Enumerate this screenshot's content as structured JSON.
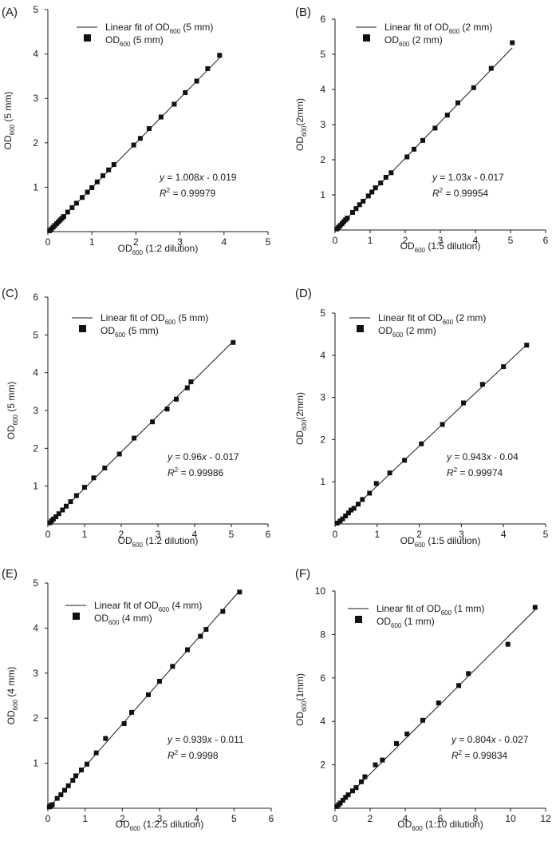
{
  "chart_data": [
    {
      "type": "scatter",
      "panel_label": "(A)",
      "xlabel": {
        "main": "OD",
        "sub": "600",
        "rest": " (1:2 dilution)"
      },
      "ylabel": {
        "main": "OD",
        "sub": "600",
        "rest": " (5 mm)"
      },
      "xlim": [
        0,
        5
      ],
      "ylim": [
        0,
        5
      ],
      "xticks": [
        0,
        1,
        2,
        3,
        4,
        5
      ],
      "yticks": [
        1,
        2,
        3,
        4,
        5
      ],
      "legend": {
        "line": {
          "prefix": "Linear fit of OD",
          "sub": "600",
          "rest": " (5 mm)"
        },
        "marker": {
          "prefix": "OD",
          "sub": "600",
          "rest": " (5 mm)"
        }
      },
      "fit": {
        "slope": 1.008,
        "intercept": -0.019,
        "x_end": 3.95
      },
      "equation": {
        "y": "y",
        "eq": " = 1.008",
        "x": "x",
        "tail": " - 0.019"
      },
      "r2": {
        "r": "R",
        "sup": "2",
        "value": " = 0.99979"
      },
      "points": [
        [
          0.04,
          0.02
        ],
        [
          0.08,
          0.06
        ],
        [
          0.12,
          0.1
        ],
        [
          0.16,
          0.14
        ],
        [
          0.2,
          0.18
        ],
        [
          0.24,
          0.22
        ],
        [
          0.28,
          0.26
        ],
        [
          0.32,
          0.3
        ],
        [
          0.36,
          0.34
        ],
        [
          0.45,
          0.44
        ],
        [
          0.55,
          0.54
        ],
        [
          0.65,
          0.64
        ],
        [
          0.78,
          0.77
        ],
        [
          0.9,
          0.89
        ],
        [
          1.0,
          0.99
        ],
        [
          1.12,
          1.12
        ],
        [
          1.25,
          1.26
        ],
        [
          1.38,
          1.39
        ],
        [
          1.5,
          1.51
        ],
        [
          1.95,
          1.95
        ],
        [
          2.1,
          2.1
        ],
        [
          2.3,
          2.32
        ],
        [
          2.57,
          2.58
        ],
        [
          2.87,
          2.87
        ],
        [
          3.12,
          3.13
        ],
        [
          3.38,
          3.39
        ],
        [
          3.63,
          3.67
        ],
        [
          3.9,
          3.97
        ]
      ]
    },
    {
      "type": "scatter",
      "panel_label": "(B)",
      "xlabel": {
        "main": "OD",
        "sub": "600",
        "rest": " (1:5 dilution)"
      },
      "ylabel": {
        "main": "OD",
        "sub": "600",
        "rest": "(2mm)"
      },
      "xlim": [
        0,
        6
      ],
      "ylim": [
        0,
        6
      ],
      "xticks": [
        0,
        1,
        2,
        3,
        4,
        5,
        6
      ],
      "yticks": [
        1,
        2,
        3,
        4,
        5,
        6
      ],
      "legend": {
        "line": {
          "prefix": "Linear fit of OD",
          "sub": "600",
          "rest": " (2 mm)"
        },
        "marker": {
          "prefix": "OD",
          "sub": "600",
          "rest": " (2 mm)"
        }
      },
      "fit": {
        "slope": 1.03,
        "intercept": -0.017,
        "x_end": 5.05
      },
      "equation": {
        "y": "y",
        "eq": " = 1.03",
        "x": "x",
        "tail": " - 0.017"
      },
      "r2": {
        "r": "R",
        "sup": "2",
        "value": " = 0.99954"
      },
      "points": [
        [
          0.05,
          0.03
        ],
        [
          0.1,
          0.08
        ],
        [
          0.15,
          0.13
        ],
        [
          0.2,
          0.18
        ],
        [
          0.25,
          0.24
        ],
        [
          0.3,
          0.29
        ],
        [
          0.35,
          0.34
        ],
        [
          0.5,
          0.5
        ],
        [
          0.6,
          0.61
        ],
        [
          0.7,
          0.72
        ],
        [
          0.8,
          0.82
        ],
        [
          0.95,
          0.97
        ],
        [
          1.05,
          1.08
        ],
        [
          1.15,
          1.2
        ],
        [
          1.3,
          1.34
        ],
        [
          1.45,
          1.5
        ],
        [
          1.6,
          1.63
        ],
        [
          2.05,
          2.08
        ],
        [
          2.25,
          2.3
        ],
        [
          2.5,
          2.55
        ],
        [
          2.85,
          2.9
        ],
        [
          3.2,
          3.27
        ],
        [
          3.5,
          3.62
        ],
        [
          3.95,
          4.05
        ],
        [
          4.45,
          4.6
        ],
        [
          5.05,
          5.33
        ]
      ]
    },
    {
      "type": "scatter",
      "panel_label": "(C)",
      "xlabel": {
        "main": "OD",
        "sub": "600",
        "rest": " (1:2 dilution)"
      },
      "ylabel": {
        "main": "OD",
        "sub": "600",
        "rest": " (5 mm)"
      },
      "xlim": [
        0,
        6
      ],
      "ylim": [
        0,
        6
      ],
      "xticks": [
        0,
        1,
        2,
        3,
        4,
        5,
        6
      ],
      "yticks": [
        1,
        2,
        3,
        4,
        5,
        6
      ],
      "legend": {
        "line": {
          "prefix": "Linear fit of OD",
          "sub": "600",
          "rest": " (5 mm)"
        },
        "marker": {
          "prefix": "OD",
          "sub": "600",
          "rest": " (5 mm)"
        }
      },
      "fit": {
        "slope": 0.96,
        "intercept": -0.017,
        "x_end": 5.05
      },
      "equation": {
        "y": "y",
        "eq": " = 0.96",
        "x": "x",
        "tail": " - 0.017"
      },
      "r2": {
        "r": "R",
        "sup": "2",
        "value": " = 0.99986"
      },
      "points": [
        [
          0.05,
          0.03
        ],
        [
          0.1,
          0.08
        ],
        [
          0.15,
          0.13
        ],
        [
          0.22,
          0.19
        ],
        [
          0.3,
          0.27
        ],
        [
          0.4,
          0.37
        ],
        [
          0.5,
          0.47
        ],
        [
          0.62,
          0.59
        ],
        [
          0.78,
          0.75
        ],
        [
          1.0,
          0.97
        ],
        [
          1.25,
          1.22
        ],
        [
          1.55,
          1.48
        ],
        [
          1.95,
          1.85
        ],
        [
          2.35,
          2.27
        ],
        [
          2.85,
          2.7
        ],
        [
          3.25,
          3.04
        ],
        [
          3.5,
          3.3
        ],
        [
          3.8,
          3.6
        ],
        [
          3.9,
          3.76
        ],
        [
          5.05,
          4.8
        ]
      ]
    },
    {
      "type": "scatter",
      "panel_label": "(D)",
      "xlabel": {
        "main": "OD",
        "sub": "600",
        "rest": " (1:5 dilution)"
      },
      "ylabel": {
        "main": "OD",
        "sub": "600",
        "rest": "(2mm)"
      },
      "xlim": [
        0,
        5
      ],
      "ylim": [
        0,
        5
      ],
      "xticks": [
        0,
        1,
        2,
        3,
        4,
        5
      ],
      "yticks": [
        1,
        2,
        3,
        4,
        5
      ],
      "legend": {
        "line": {
          "prefix": "Linear fit of OD",
          "sub": "600",
          "rest": " (2 mm)"
        },
        "marker": {
          "prefix": "OD",
          "sub": "600",
          "rest": " (2 mm)"
        }
      },
      "fit": {
        "slope": 0.943,
        "intercept": -0.04,
        "x_end": 4.55
      },
      "equation": {
        "y": "y",
        "eq": " = 0.943",
        "x": "x",
        "tail": " - 0.04"
      },
      "r2": {
        "r": "R",
        "sup": "2",
        "value": " = 0.99974"
      },
      "points": [
        [
          0.05,
          0.02
        ],
        [
          0.12,
          0.07
        ],
        [
          0.18,
          0.12
        ],
        [
          0.25,
          0.19
        ],
        [
          0.32,
          0.26
        ],
        [
          0.38,
          0.33
        ],
        [
          0.45,
          0.37
        ],
        [
          0.55,
          0.47
        ],
        [
          0.65,
          0.58
        ],
        [
          0.82,
          0.73
        ],
        [
          0.98,
          0.96
        ],
        [
          1.3,
          1.21
        ],
        [
          1.65,
          1.51
        ],
        [
          2.05,
          1.9
        ],
        [
          2.55,
          2.36
        ],
        [
          3.05,
          2.87
        ],
        [
          3.5,
          3.31
        ],
        [
          4.0,
          3.73
        ],
        [
          4.55,
          4.24
        ]
      ]
    },
    {
      "type": "scatter",
      "panel_label": "(E)",
      "xlabel": {
        "main": "OD",
        "sub": "600",
        "rest": " (1:2.5 dilution)"
      },
      "ylabel": {
        "main": "OD",
        "sub": "600",
        "rest": " (4 mm)"
      },
      "xlim": [
        0,
        6
      ],
      "ylim": [
        0,
        5
      ],
      "xticks": [
        0,
        1,
        2,
        3,
        4,
        5,
        6
      ],
      "yticks": [
        1,
        2,
        3,
        4,
        5
      ],
      "legend": {
        "line": {
          "prefix": "Linear fit of OD",
          "sub": "600",
          "rest": " (4 mm)"
        },
        "marker": {
          "prefix": "OD",
          "sub": "600",
          "rest": " (4 mm)"
        }
      },
      "fit": {
        "slope": 0.939,
        "intercept": -0.011,
        "x_end": 5.15
      },
      "equation": {
        "y": "y",
        "eq": " = 0.939",
        "x": "x",
        "tail": " - 0.011"
      },
      "r2": {
        "r": "R",
        "sup": "2",
        "value": " = 0.9998"
      },
      "points": [
        [
          0.04,
          0.03
        ],
        [
          0.08,
          0.06
        ],
        [
          0.12,
          0.08
        ],
        [
          0.25,
          0.22
        ],
        [
          0.35,
          0.3
        ],
        [
          0.45,
          0.4
        ],
        [
          0.55,
          0.5
        ],
        [
          0.67,
          0.62
        ],
        [
          0.75,
          0.72
        ],
        [
          0.9,
          0.85
        ],
        [
          1.05,
          0.98
        ],
        [
          1.3,
          1.23
        ],
        [
          1.55,
          1.55
        ],
        [
          2.05,
          1.88
        ],
        [
          2.25,
          2.13
        ],
        [
          2.7,
          2.52
        ],
        [
          3.0,
          2.82
        ],
        [
          3.35,
          3.15
        ],
        [
          3.75,
          3.52
        ],
        [
          4.1,
          3.82
        ],
        [
          4.25,
          3.97
        ],
        [
          4.7,
          4.37
        ],
        [
          5.15,
          4.8
        ]
      ]
    },
    {
      "type": "scatter",
      "panel_label": "(F)",
      "xlabel": {
        "main": "OD",
        "sub": "600",
        "rest": " (1:10 dilution)"
      },
      "ylabel": {
        "main": "OD",
        "sub": "600",
        "rest": "(1mm)"
      },
      "xlim": [
        0,
        12
      ],
      "ylim": [
        0,
        10
      ],
      "xticks": [
        0,
        2,
        4,
        6,
        8,
        10,
        12
      ],
      "yticks": [
        2,
        4,
        6,
        8,
        10
      ],
      "legend": {
        "line": {
          "prefix": "Linear fit of OD",
          "sub": "600",
          "rest": " (1 mm)"
        },
        "marker": {
          "prefix": "OD",
          "sub": "600",
          "rest": " (1 mm)"
        }
      },
      "fit": {
        "slope": 0.804,
        "intercept": -0.027,
        "x_end": 11.5
      },
      "equation": {
        "y": "y",
        "eq": " = 0.804",
        "x": "x",
        "tail": " - 0.027"
      },
      "r2": {
        "r": "R",
        "sup": "2",
        "value": " = 0.99834"
      },
      "points": [
        [
          0.1,
          0.08
        ],
        [
          0.2,
          0.16
        ],
        [
          0.3,
          0.24
        ],
        [
          0.45,
          0.37
        ],
        [
          0.6,
          0.5
        ],
        [
          0.75,
          0.62
        ],
        [
          1.0,
          0.8
        ],
        [
          1.2,
          0.95
        ],
        [
          1.5,
          1.22
        ],
        [
          1.7,
          1.45
        ],
        [
          2.3,
          2.0
        ],
        [
          2.7,
          2.22
        ],
        [
          3.5,
          2.98
        ],
        [
          4.1,
          3.42
        ],
        [
          5.0,
          4.05
        ],
        [
          5.9,
          4.85
        ],
        [
          7.05,
          5.65
        ],
        [
          7.6,
          6.2
        ],
        [
          9.85,
          7.55
        ],
        [
          11.4,
          9.25
        ]
      ]
    }
  ]
}
